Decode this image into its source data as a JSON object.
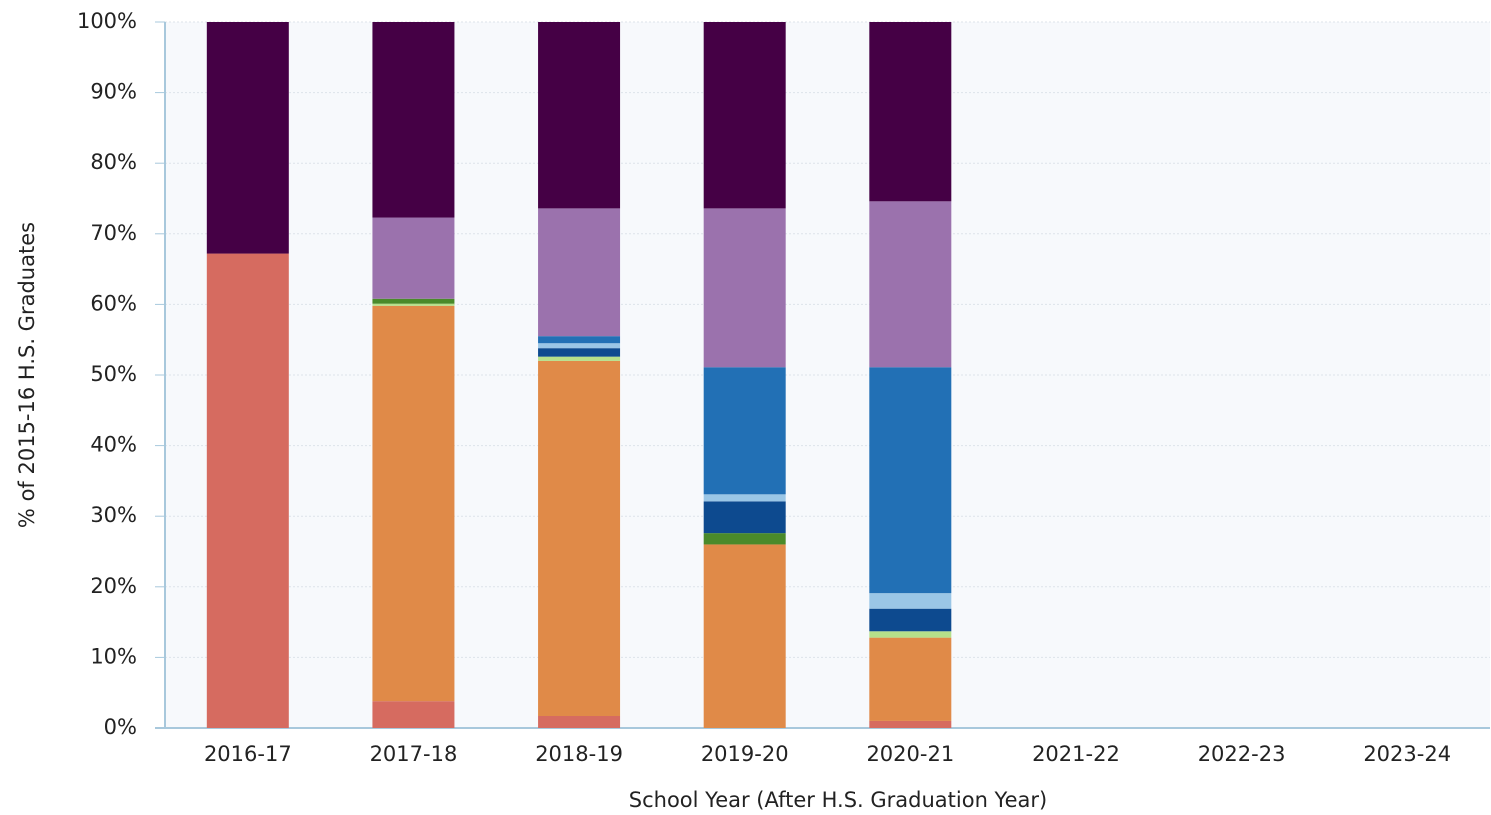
{
  "chart_data": {
    "type": "stacked_bar",
    "x_label": "School Year (After H.S. Graduation Year)",
    "y_label": "% of 2015-16 H.S. Graduates",
    "categories": [
      "2016-17",
      "2017-18",
      "2018-19",
      "2019-20",
      "2020-21",
      "2021-22",
      "2022-23",
      "2023-24"
    ],
    "series": [
      {
        "color": "#d66b60",
        "values": [
          67.2,
          3.8,
          1.7,
          0,
          1.0,
          null,
          null,
          null
        ]
      },
      {
        "color": "#e08a48",
        "values": [
          0,
          56.0,
          50.3,
          26.0,
          11.8,
          null,
          null,
          null
        ]
      },
      {
        "color": "#b5e08a",
        "values": [
          0,
          0.3,
          0.6,
          0,
          0.9,
          null,
          null,
          null
        ]
      },
      {
        "color": "#4a8a2a",
        "values": [
          0,
          0.7,
          0,
          1.6,
          0,
          null,
          null,
          null
        ]
      },
      {
        "color": "#0d4a8f",
        "values": [
          0,
          0,
          1.2,
          4.5,
          3.2,
          null,
          null,
          null
        ]
      },
      {
        "color": "#9ac6e6",
        "values": [
          0,
          0,
          0.7,
          1.0,
          2.2,
          null,
          null,
          null
        ]
      },
      {
        "color": "#2270b5",
        "values": [
          0,
          0,
          1.0,
          18.0,
          32.0,
          null,
          null,
          null
        ]
      },
      {
        "color": "#9b72ad",
        "values": [
          0,
          11.5,
          18.1,
          22.5,
          23.5,
          null,
          null,
          null
        ]
      },
      {
        "color": "#450045",
        "values": [
          32.8,
          27.7,
          26.4,
          26.4,
          25.4,
          null,
          null,
          null
        ]
      }
    ],
    "ylim": [
      0,
      100
    ],
    "yticks": [
      {
        "value": 0,
        "label": "0%"
      },
      {
        "value": 10,
        "label": "10%"
      },
      {
        "value": 20,
        "label": "20%"
      },
      {
        "value": 30,
        "label": "30%"
      },
      {
        "value": 40,
        "label": "40%"
      },
      {
        "value": 50,
        "label": "50%"
      },
      {
        "value": 60,
        "label": "60%"
      },
      {
        "value": 70,
        "label": "70%"
      },
      {
        "value": 80,
        "label": "80%"
      },
      {
        "value": 90,
        "label": "90%"
      },
      {
        "value": 100,
        "label": "100%"
      }
    ],
    "grid": true
  }
}
